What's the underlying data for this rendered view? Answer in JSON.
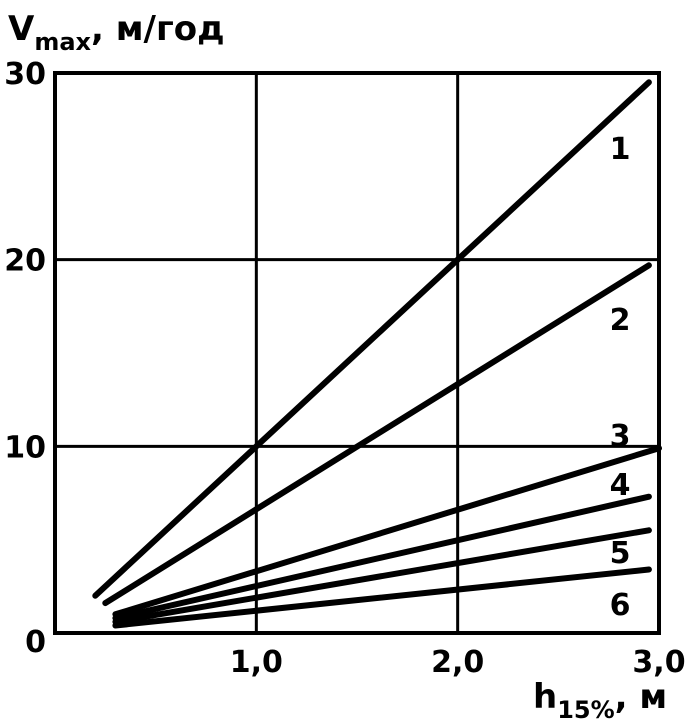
{
  "chart_data": {
    "type": "line",
    "ylabel": "V",
    "ylabel_sub": "max",
    "ylabel_unit": ", м/год",
    "xlabel": "h",
    "xlabel_sub": "15%",
    "xlabel_unit": ", м",
    "xlim": [
      0,
      3.0
    ],
    "ylim": [
      0,
      30
    ],
    "x_ticks": [
      {
        "value": 1.0,
        "label": "1,0"
      },
      {
        "value": 2.0,
        "label": "2,0"
      },
      {
        "value": 3.0,
        "label": "3,0"
      }
    ],
    "y_ticks": [
      {
        "value": 0,
        "label": "0"
      },
      {
        "value": 10,
        "label": "10"
      },
      {
        "value": 20,
        "label": "20"
      },
      {
        "value": 30,
        "label": "30"
      }
    ],
    "grid": true,
    "series": [
      {
        "name": "1",
        "x": [
          0.2,
          2.95
        ],
        "y": [
          2.0,
          29.5
        ]
      },
      {
        "name": "2",
        "x": [
          0.25,
          2.95
        ],
        "y": [
          1.6,
          19.7
        ]
      },
      {
        "name": "3",
        "x": [
          0.3,
          3.0
        ],
        "y": [
          1.0,
          9.9
        ]
      },
      {
        "name": "4",
        "x": [
          0.3,
          2.95
        ],
        "y": [
          0.8,
          7.3
        ]
      },
      {
        "name": "5",
        "x": [
          0.3,
          2.95
        ],
        "y": [
          0.6,
          5.5
        ]
      },
      {
        "name": "6",
        "x": [
          0.3,
          2.95
        ],
        "y": [
          0.4,
          3.4
        ]
      }
    ]
  }
}
